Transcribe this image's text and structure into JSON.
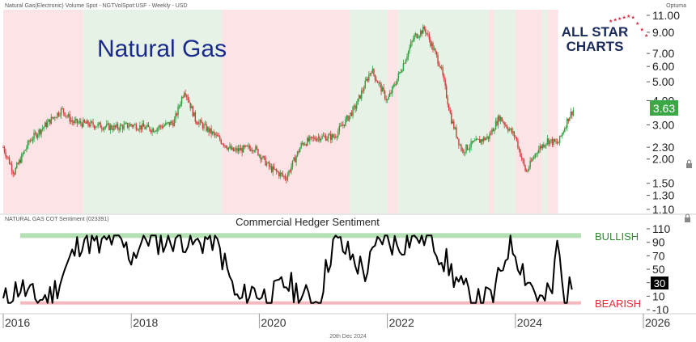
{
  "header": {
    "instrument": "Natural Gas(Electronic) Volume Spot - NGTVolSpot:USF - Weekly - USD",
    "provider": "Optuma",
    "main_title": "Natural Gas",
    "logo_line1": "ALL STAR",
    "logo_line2": "CHARTS",
    "footer_date": "20th Dec 2024"
  },
  "colors": {
    "bullish_band": "#e6f2e6",
    "bearish_band": "#fbe3e6",
    "candle_up": "#2e9e3a",
    "candle_down": "#d23a3a",
    "price_box": "#39a845",
    "sentiment_line": "#000000",
    "bullish_line": "#b5dfb5",
    "bearish_line": "#f4b8be",
    "bullish_text": "#2e8b2e",
    "bearish_text": "#e0303a",
    "title_blue": "#1a2a8c",
    "logo_navy": "#1a2a5c",
    "logo_red": "#d8283c"
  },
  "chart_data": [
    {
      "type": "candlestick",
      "title": "Natural Gas",
      "scale": "log",
      "ylim": [
        1.1,
        11.0
      ],
      "yticks": [
        11.0,
        9.0,
        7.0,
        6.0,
        5.0,
        4.0,
        3.0,
        2.3,
        2.0,
        1.5,
        1.3,
        1.1
      ],
      "yticks_labels": [
        "11.00",
        "9.00",
        "7.00",
        "6.00",
        "5.00",
        "4.00",
        "3.00",
        "2.30",
        "2.00",
        "1.50",
        "1.30",
        "1.10"
      ],
      "last_price": "3.63",
      "x_range": [
        "2016-01",
        "2025-01"
      ],
      "regimes": [
        {
          "start": "2016-01",
          "end": "2017-04",
          "sentiment": "bearish"
        },
        {
          "start": "2017-04",
          "end": "2019-06",
          "sentiment": "bullish"
        },
        {
          "start": "2019-06",
          "end": "2021-06",
          "sentiment": "bearish"
        },
        {
          "start": "2021-06",
          "end": "2022-01",
          "sentiment": "bullish"
        },
        {
          "start": "2022-01",
          "end": "2022-03",
          "sentiment": "bearish"
        },
        {
          "start": "2022-03",
          "end": "2023-08",
          "sentiment": "bullish"
        },
        {
          "start": "2023-08",
          "end": "2023-09",
          "sentiment": "bearish"
        },
        {
          "start": "2023-09",
          "end": "2024-01",
          "sentiment": "bullish"
        },
        {
          "start": "2024-01",
          "end": "2024-06",
          "sentiment": "bearish"
        },
        {
          "start": "2024-06",
          "end": "2024-07",
          "sentiment": "bullish"
        },
        {
          "start": "2024-07",
          "end": "2024-09",
          "sentiment": "bearish"
        }
      ],
      "price_path": [
        [
          "2016-01",
          2.3
        ],
        [
          "2016-03",
          1.7
        ],
        [
          "2016-06",
          2.5
        ],
        [
          "2016-10",
          3.2
        ],
        [
          "2016-12",
          3.6
        ],
        [
          "2017-02",
          3.1
        ],
        [
          "2017-06",
          3.0
        ],
        [
          "2017-10",
          2.9
        ],
        [
          "2018-01",
          3.0
        ],
        [
          "2018-05",
          2.85
        ],
        [
          "2018-09",
          3.1
        ],
        [
          "2018-11",
          4.6
        ],
        [
          "2019-01",
          3.2
        ],
        [
          "2019-05",
          2.6
        ],
        [
          "2019-08",
          2.2
        ],
        [
          "2019-12",
          2.3
        ],
        [
          "2020-03",
          1.8
        ],
        [
          "2020-06",
          1.6
        ],
        [
          "2020-09",
          2.4
        ],
        [
          "2020-12",
          2.6
        ],
        [
          "2021-03",
          2.6
        ],
        [
          "2021-07",
          3.7
        ],
        [
          "2021-10",
          5.8
        ],
        [
          "2022-01",
          4.0
        ],
        [
          "2022-03",
          5.3
        ],
        [
          "2022-06",
          8.5
        ],
        [
          "2022-08",
          9.4
        ],
        [
          "2022-11",
          6.0
        ],
        [
          "2023-01",
          3.2
        ],
        [
          "2023-03",
          2.2
        ],
        [
          "2023-05",
          2.4
        ],
        [
          "2023-08",
          2.6
        ],
        [
          "2023-10",
          3.3
        ],
        [
          "2024-01",
          2.6
        ],
        [
          "2024-03",
          1.7
        ],
        [
          "2024-05",
          2.2
        ],
        [
          "2024-07",
          2.5
        ],
        [
          "2024-09",
          2.4
        ],
        [
          "2024-11",
          3.3
        ],
        [
          "2024-12",
          3.63
        ]
      ]
    },
    {
      "type": "line",
      "title": "Commercial Hedger Sentiment",
      "indicator": "NATURAL GAS COT Sentiment (023391)",
      "ylim": [
        -10,
        110
      ],
      "yticks": [
        110,
        90,
        70,
        50,
        30,
        10,
        -10
      ],
      "last_value": "30",
      "bullish_level": 100,
      "bearish_level": 0,
      "bullish_label": "BULLISH",
      "bearish_label": "BEARISH",
      "series": [
        {
          "values": [
            [
              "2016-01",
              0
            ],
            [
              "2016-04",
              25
            ],
            [
              "2016-07",
              5
            ],
            [
              "2016-10",
              10
            ],
            [
              "2017-01",
              55
            ],
            [
              "2017-04",
              100
            ],
            [
              "2017-07",
              80
            ],
            [
              "2017-10",
              100
            ],
            [
              "2018-01",
              70
            ],
            [
              "2018-04",
              100
            ],
            [
              "2018-07",
              90
            ],
            [
              "2018-10",
              100
            ],
            [
              "2019-01",
              85
            ],
            [
              "2019-04",
              100
            ],
            [
              "2019-06",
              70
            ],
            [
              "2019-09",
              0
            ],
            [
              "2019-12",
              20
            ],
            [
              "2020-03",
              5
            ],
            [
              "2020-06",
              30
            ],
            [
              "2020-09",
              10
            ],
            [
              "2020-12",
              0
            ],
            [
              "2021-03",
              95
            ],
            [
              "2021-06",
              70
            ],
            [
              "2021-09",
              45
            ],
            [
              "2021-12",
              100
            ],
            [
              "2022-03",
              85
            ],
            [
              "2022-06",
              100
            ],
            [
              "2022-09",
              100
            ],
            [
              "2022-12",
              60
            ],
            [
              "2023-03",
              20
            ],
            [
              "2023-06",
              0
            ],
            [
              "2023-09",
              10
            ],
            [
              "2023-12",
              95
            ],
            [
              "2024-03",
              40
            ],
            [
              "2024-06",
              0
            ],
            [
              "2024-08",
              20
            ],
            [
              "2024-09",
              100
            ],
            [
              "2024-10",
              0
            ],
            [
              "2024-12",
              30
            ]
          ]
        }
      ],
      "x_ticks": [
        "2016",
        "2018",
        "2020",
        "2022",
        "2024",
        "2026"
      ]
    }
  ]
}
